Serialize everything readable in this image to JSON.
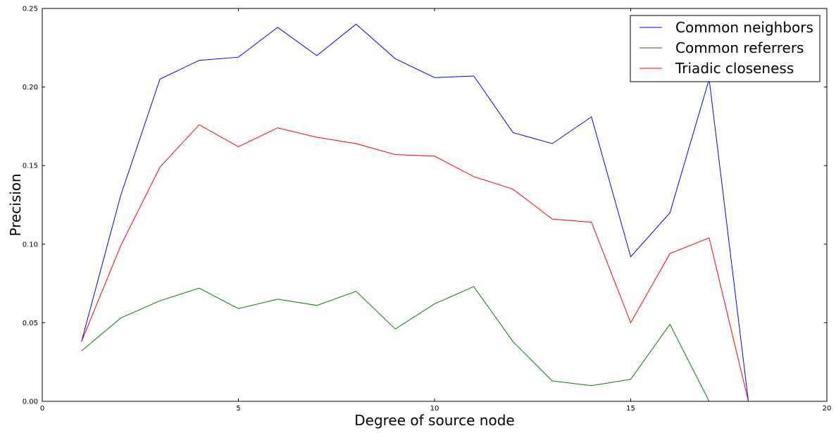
{
  "chart_data": {
    "type": "line",
    "title": "",
    "xlabel": "Degree of source node",
    "ylabel": "Precision",
    "xlim": [
      0,
      20
    ],
    "ylim": [
      0.0,
      0.25
    ],
    "x_ticks": [
      0,
      5,
      10,
      15,
      20
    ],
    "x_tick_labels": [
      "0",
      "5",
      "10",
      "15",
      "20"
    ],
    "y_ticks": [
      0.0,
      0.05,
      0.1,
      0.15,
      0.2,
      0.25
    ],
    "y_tick_labels": [
      "0.00",
      "0.05",
      "0.10",
      "0.15",
      "0.20",
      "0.25"
    ],
    "grid": false,
    "legend_position": "top-right",
    "x": [
      1,
      2,
      3,
      4,
      5,
      6,
      7,
      8,
      9,
      10,
      11,
      12,
      13,
      14,
      15,
      16,
      17,
      18,
      19
    ],
    "series": [
      {
        "name": "Common neighbors",
        "color": "#0000ff",
        "values": [
          0.038,
          0.131,
          0.205,
          0.217,
          0.219,
          0.238,
          0.22,
          0.24,
          0.218,
          0.206,
          0.207,
          0.171,
          0.164,
          0.181,
          0.092,
          0.12,
          0.205,
          0.0,
          0.0
        ]
      },
      {
        "name": "Common referrers",
        "color": "#008000",
        "values": [
          0.032,
          0.053,
          0.064,
          0.072,
          0.059,
          0.065,
          0.061,
          0.07,
          0.046,
          0.062,
          0.073,
          0.038,
          0.013,
          0.01,
          0.014,
          0.049,
          0.0,
          0.0,
          0.0
        ]
      },
      {
        "name": "Triadic closeness",
        "color": "#ff0000",
        "values": [
          0.038,
          0.099,
          0.149,
          0.176,
          0.162,
          0.174,
          0.168,
          0.164,
          0.157,
          0.156,
          0.143,
          0.135,
          0.116,
          0.114,
          0.05,
          0.094,
          0.104,
          0.0,
          0.0
        ]
      }
    ]
  }
}
